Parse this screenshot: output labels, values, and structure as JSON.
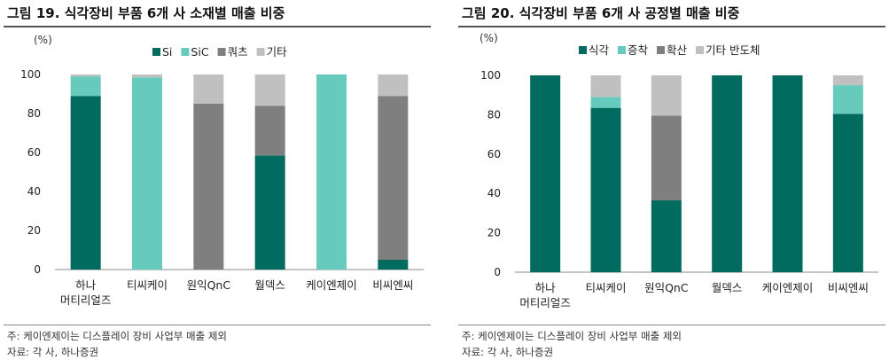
{
  "colors": {
    "dark_green": "#006b5e",
    "mint": "#66cbbd",
    "dark_gray": "#7f7f7f",
    "light_gray": "#c0c0c0"
  },
  "left": {
    "title": "그림 19. 식각장비 부품 6개 사 소재별 매출 비중",
    "unit": "(%)",
    "note": "주: 케이엔제이는 디스플레이 장비 사업부 매출 제외",
    "source": "자료: 각 사, 하나증권"
  },
  "right": {
    "title": "그림 20. 식각장비 부품 6개 사 공정별 매출 비중",
    "unit": "(%)",
    "note": "주: 케이엔제이는 디스플레이 장비 사업부 매출 제외",
    "source": "자료: 각 사, 하나증권"
  },
  "chart_data": [
    {
      "type": "bar",
      "stacked": true,
      "title": "그림 19. 식각장비 부품 6개 사 소재별 매출 비중",
      "ylabel": "(%)",
      "ylim": [
        0,
        100
      ],
      "yticks": [
        0,
        20,
        40,
        60,
        80,
        100
      ],
      "grid": false,
      "legend_position": "top",
      "categories": [
        [
          "하나",
          "머티리얼즈"
        ],
        [
          "티씨케이"
        ],
        [
          "원익QnC"
        ],
        [
          "월덱스"
        ],
        [
          "케이엔제이"
        ],
        [
          "비씨엔씨"
        ]
      ],
      "series": [
        {
          "name": "Si",
          "color": "#006b5e",
          "values": [
            89,
            0,
            0,
            58.5,
            0,
            5
          ]
        },
        {
          "name": "SiC",
          "color": "#66cbbd",
          "values": [
            10,
            98.5,
            0,
            0,
            100,
            0
          ]
        },
        {
          "name": "쿼츠",
          "color": "#7f7f7f",
          "values": [
            0,
            0,
            85,
            25.5,
            0,
            84
          ]
        },
        {
          "name": "기타",
          "color": "#c0c0c0",
          "values": [
            1,
            1.5,
            15,
            16,
            0,
            11
          ]
        }
      ]
    },
    {
      "type": "bar",
      "stacked": true,
      "title": "그림 20. 식각장비 부품 6개 사 공정별 매출 비중",
      "ylabel": "(%)",
      "ylim": [
        0,
        100
      ],
      "yticks": [
        0,
        20,
        40,
        60,
        80,
        100
      ],
      "grid": false,
      "legend_position": "top",
      "categories": [
        [
          "하나",
          "머티리얼즈"
        ],
        [
          "티씨케이"
        ],
        [
          "원익QnC"
        ],
        [
          "월덱스"
        ],
        [
          "케이엔제이"
        ],
        [
          "비씨엔씨"
        ]
      ],
      "series": [
        {
          "name": "식각",
          "color": "#006b5e",
          "values": [
            100,
            83.5,
            36.5,
            100,
            100,
            80.5
          ]
        },
        {
          "name": "증착",
          "color": "#66cbbd",
          "values": [
            0,
            5.5,
            0,
            0,
            0,
            14.5
          ]
        },
        {
          "name": "확산",
          "color": "#7f7f7f",
          "values": [
            0,
            0,
            43,
            0,
            0,
            0
          ]
        },
        {
          "name": "기타 반도체",
          "color": "#c0c0c0",
          "values": [
            0,
            11,
            20.5,
            0,
            0,
            5
          ]
        }
      ]
    }
  ]
}
